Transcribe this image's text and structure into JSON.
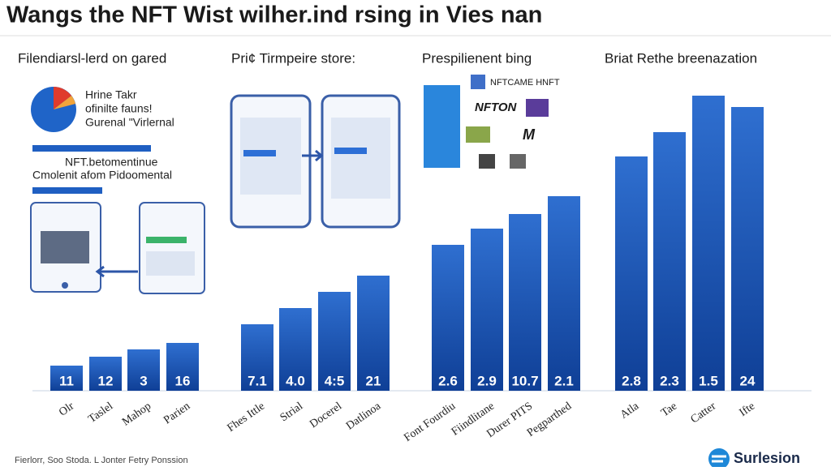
{
  "title": "Wangs the NFT Wist wilher.ind rsing in Vies nan",
  "panels": [
    {
      "heading": "Filendiarsl-lerd on gared",
      "notes": [
        "Hrine Takr",
        "ofinilte fauns!",
        "Gurenal \"Virlernal"
      ],
      "caption": [
        "NFT.betomentinue",
        "Cmolenit afom Pidoomental"
      ]
    },
    {
      "heading": "Pri¢ Tirmpeire store:"
    },
    {
      "heading": "Prespilienent bing",
      "logos": [
        "NFTCAME HNFT",
        "NFTON",
        "M"
      ]
    },
    {
      "heading": "Briat Rethe breenazation"
    }
  ],
  "bar_groups": [
    {
      "labels": [
        "11",
        "12",
        "3",
        "16"
      ],
      "categories": [
        "Olr",
        "Taslel",
        "Mahop",
        "Parien"
      ]
    },
    {
      "labels": [
        "7.1",
        "4.0",
        "4:5",
        "21"
      ],
      "categories": [
        "Fhes Ittle",
        "Strial",
        "Docerel",
        "Datlinoa"
      ]
    },
    {
      "labels": [
        "2.6",
        "2.9",
        "10.7",
        "2.1"
      ],
      "categories": [
        "Font Fourdiu",
        "Fiindlitane",
        "Durer PITS",
        "Pegparthed"
      ]
    },
    {
      "labels": [
        "2.8",
        "2.3",
        "1.5",
        "24"
      ],
      "categories": [
        "Atla",
        "Tae",
        "Catter",
        "Ifte"
      ]
    }
  ],
  "footer": "Fierlorr, Soo Stoda. L Jonter Fetry Ponssion",
  "brand": "Surlesion"
}
